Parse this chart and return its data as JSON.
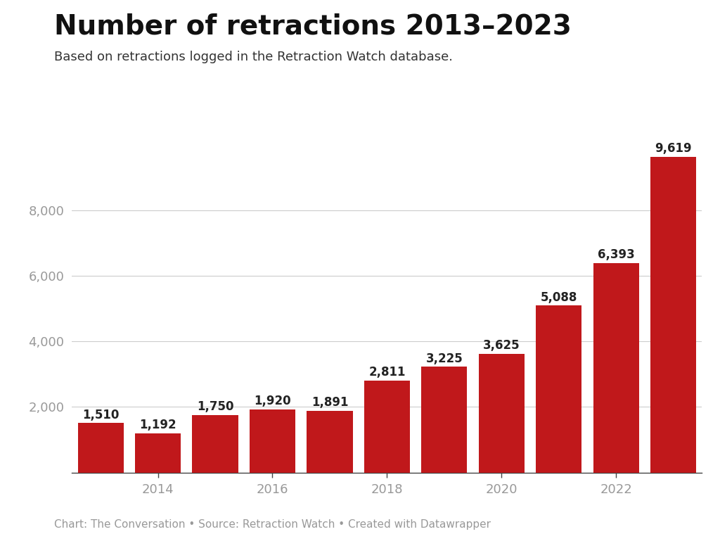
{
  "title": "Number of retractions 2013–2023",
  "subtitle": "Based on retractions logged in the Retraction Watch database.",
  "footer": "Chart: The Conversation • Source: Retraction Watch • Created with Datawrapper",
  "years": [
    2013,
    2014,
    2015,
    2016,
    2017,
    2018,
    2019,
    2020,
    2021,
    2022,
    2023
  ],
  "values": [
    1510,
    1192,
    1750,
    1920,
    1891,
    2811,
    3225,
    3625,
    5088,
    6393,
    9619
  ],
  "bar_color": "#c0181b",
  "background_color": "#ffffff",
  "grid_color": "#cccccc",
  "axis_color": "#444444",
  "label_color": "#222222",
  "tick_label_color": "#999999",
  "footer_color": "#999999",
  "subtitle_color": "#333333",
  "ylim": [
    0,
    10500
  ],
  "yticks": [
    2000,
    4000,
    6000,
    8000
  ],
  "title_fontsize": 28,
  "subtitle_fontsize": 13,
  "bar_label_fontsize": 12,
  "tick_fontsize": 13,
  "footer_fontsize": 11
}
